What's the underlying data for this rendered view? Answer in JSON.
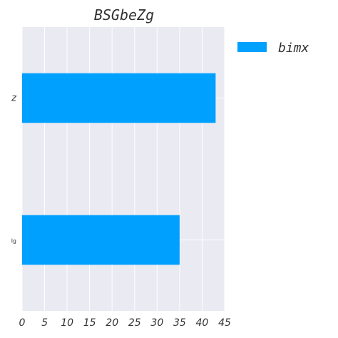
{
  "chart_data": {
    "type": "bar",
    "orientation": "horizontal",
    "title": "BSGbeZg",
    "categories": [
      "z",
      "lg"
    ],
    "series": [
      {
        "name": "bimx",
        "values": [
          43,
          35
        ]
      }
    ],
    "xlim": [
      0,
      45
    ],
    "x_ticks": [
      "0",
      "5",
      "10",
      "15",
      "20",
      "25",
      "30",
      "35",
      "40",
      "45"
    ],
    "xlabel": "",
    "ylabel": "",
    "grid": true,
    "legend_position": "right",
    "colors": {
      "bar": "#00a0ff",
      "plot_background": "#eaeaf2",
      "grid": "#ffffff",
      "text": "#333333"
    }
  }
}
